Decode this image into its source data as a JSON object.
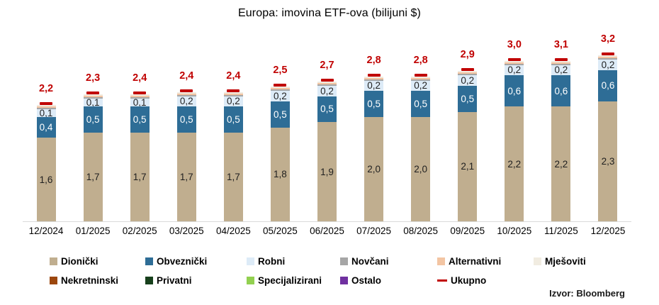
{
  "title": "Europa: imovina ETF-ova (bilijuni $)",
  "source": "Izvor: Bloomberg",
  "chart_data": {
    "type": "bar",
    "stacked": true,
    "title": "Europa: imovina ETF-ova (bilijuni $)",
    "unit": "bilijuni $",
    "grid": false,
    "legend_position": "bottom",
    "ylim": [
      0,
      3.4
    ],
    "categories": [
      "12/2024",
      "01/2025",
      "02/2025",
      "03/2025",
      "04/2025",
      "05/2025",
      "06/2025",
      "07/2025",
      "08/2025",
      "09/2025",
      "10/2025",
      "11/2025",
      "12/2025"
    ],
    "series": [
      {
        "name": "Dionički",
        "color": "#c0ae8f",
        "label_color": "#1f1f1f",
        "values": [
          1.6,
          1.7,
          1.7,
          1.7,
          1.7,
          1.8,
          1.9,
          2.0,
          2.0,
          2.1,
          2.2,
          2.2,
          2.3
        ],
        "labels": [
          "1,6",
          "1,7",
          "1,7",
          "1,7",
          "1,7",
          "1,8",
          "1,9",
          "2,0",
          "2,0",
          "2,1",
          "2,2",
          "2,2",
          "2,3"
        ]
      },
      {
        "name": "Obveznički",
        "color": "#2e6d96",
        "label_color": "#ffffff",
        "values": [
          0.4,
          0.5,
          0.5,
          0.5,
          0.5,
          0.5,
          0.5,
          0.5,
          0.5,
          0.5,
          0.6,
          0.6,
          0.6
        ],
        "labels": [
          "0,4",
          "0,5",
          "0,5",
          "0,5",
          "0,5",
          "0,5",
          "0,5",
          "0,5",
          "0,5",
          "0,5",
          "0,6",
          "0,6",
          "0,6"
        ]
      },
      {
        "name": "Robni",
        "color": "#ddebf7",
        "label_color": "#1f1f1f",
        "values": [
          0.1,
          0.1,
          0.1,
          0.2,
          0.2,
          0.2,
          0.2,
          0.2,
          0.2,
          0.2,
          0.2,
          0.2,
          0.2
        ],
        "labels": [
          "0,1",
          "0,1",
          "0,1",
          "0,2",
          "0,2",
          "0,2",
          "0,2",
          "0,2",
          "0,2",
          "0,2",
          "0,2",
          "0,2",
          "0,2"
        ]
      },
      {
        "name": "Novčani",
        "color": "#a6a6a6",
        "label_color": "#1f1f1f",
        "values": [
          0.02,
          0.02,
          0.02,
          0.02,
          0.02,
          0.02,
          0.02,
          0.02,
          0.02,
          0.02,
          0.02,
          0.02,
          0.02
        ],
        "labels": null
      },
      {
        "name": "Alternativni",
        "color": "#f3c5a3",
        "label_color": "#1f1f1f",
        "values": [
          0.02,
          0.02,
          0.02,
          0.02,
          0.02,
          0.02,
          0.02,
          0.02,
          0.02,
          0.02,
          0.02,
          0.02,
          0.02
        ],
        "labels": null
      },
      {
        "name": "Mješoviti",
        "color": "#f1ece1",
        "label_color": "#1f1f1f",
        "values": [
          0.02,
          0.02,
          0.02,
          0.02,
          0.02,
          0.02,
          0.02,
          0.02,
          0.02,
          0.02,
          0.02,
          0.02,
          0.02
        ],
        "labels": null
      },
      {
        "name": "Nekretninski",
        "color": "#9c470e",
        "label_color": "#ffffff",
        "values": [
          0,
          0,
          0,
          0,
          0,
          0,
          0,
          0,
          0,
          0,
          0,
          0,
          0
        ],
        "labels": null
      },
      {
        "name": "Privatni",
        "color": "#17401c",
        "label_color": "#ffffff",
        "values": [
          0,
          0,
          0,
          0,
          0,
          0,
          0,
          0,
          0,
          0,
          0,
          0,
          0
        ],
        "labels": null
      },
      {
        "name": "Specijalizirani",
        "color": "#92d050",
        "label_color": "#1f1f1f",
        "values": [
          0,
          0,
          0,
          0,
          0,
          0,
          0,
          0,
          0,
          0,
          0,
          0,
          0
        ],
        "labels": null
      },
      {
        "name": "Ostalo",
        "color": "#7030a0",
        "label_color": "#ffffff",
        "values": [
          0,
          0,
          0,
          0,
          0,
          0,
          0,
          0,
          0,
          0,
          0,
          0,
          0
        ],
        "labels": null
      }
    ],
    "totals": {
      "name": "Ukupno",
      "color": "#c00000",
      "values": [
        2.2,
        2.3,
        2.4,
        2.4,
        2.4,
        2.5,
        2.7,
        2.8,
        2.8,
        2.9,
        3.0,
        3.1,
        3.2
      ],
      "labels": [
        "2,2",
        "2,3",
        "2,4",
        "2,4",
        "2,4",
        "2,5",
        "2,7",
        "2,8",
        "2,8",
        "2,9",
        "3,0",
        "3,1",
        "3,2"
      ]
    }
  }
}
